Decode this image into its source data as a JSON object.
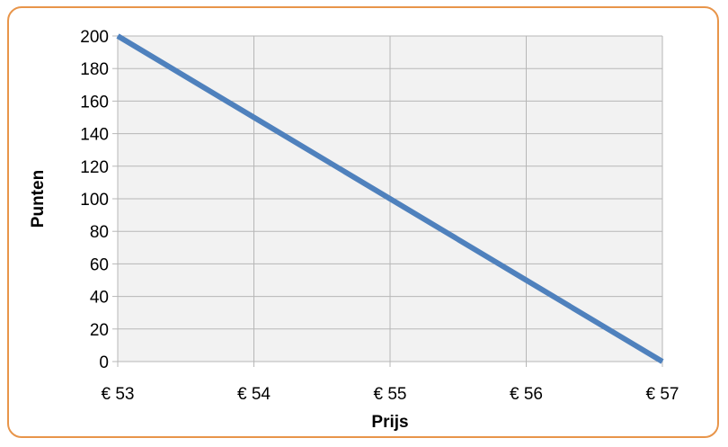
{
  "chart_data": {
    "type": "line",
    "xlabel": "Prijs",
    "ylabel": "Punten",
    "x_ticks": [
      "€ 53",
      "€ 54",
      "€ 55",
      "€ 56",
      "€ 57"
    ],
    "x_values": [
      53,
      54,
      55,
      56,
      57
    ],
    "y_ticks": [
      "0",
      "20",
      "40",
      "60",
      "80",
      "100",
      "120",
      "140",
      "160",
      "180",
      "200"
    ],
    "xlim": [
      53,
      57
    ],
    "ylim": [
      0,
      200
    ],
    "grid": true,
    "legend": "none",
    "series": [
      {
        "values": [
          200,
          150,
          100,
          50,
          0
        ],
        "color": "#4f81bd"
      }
    ],
    "colors": {
      "plot_background": "#f2f2f2",
      "gridline": "#b7b7b7",
      "frame_border": "#e8954a"
    }
  }
}
